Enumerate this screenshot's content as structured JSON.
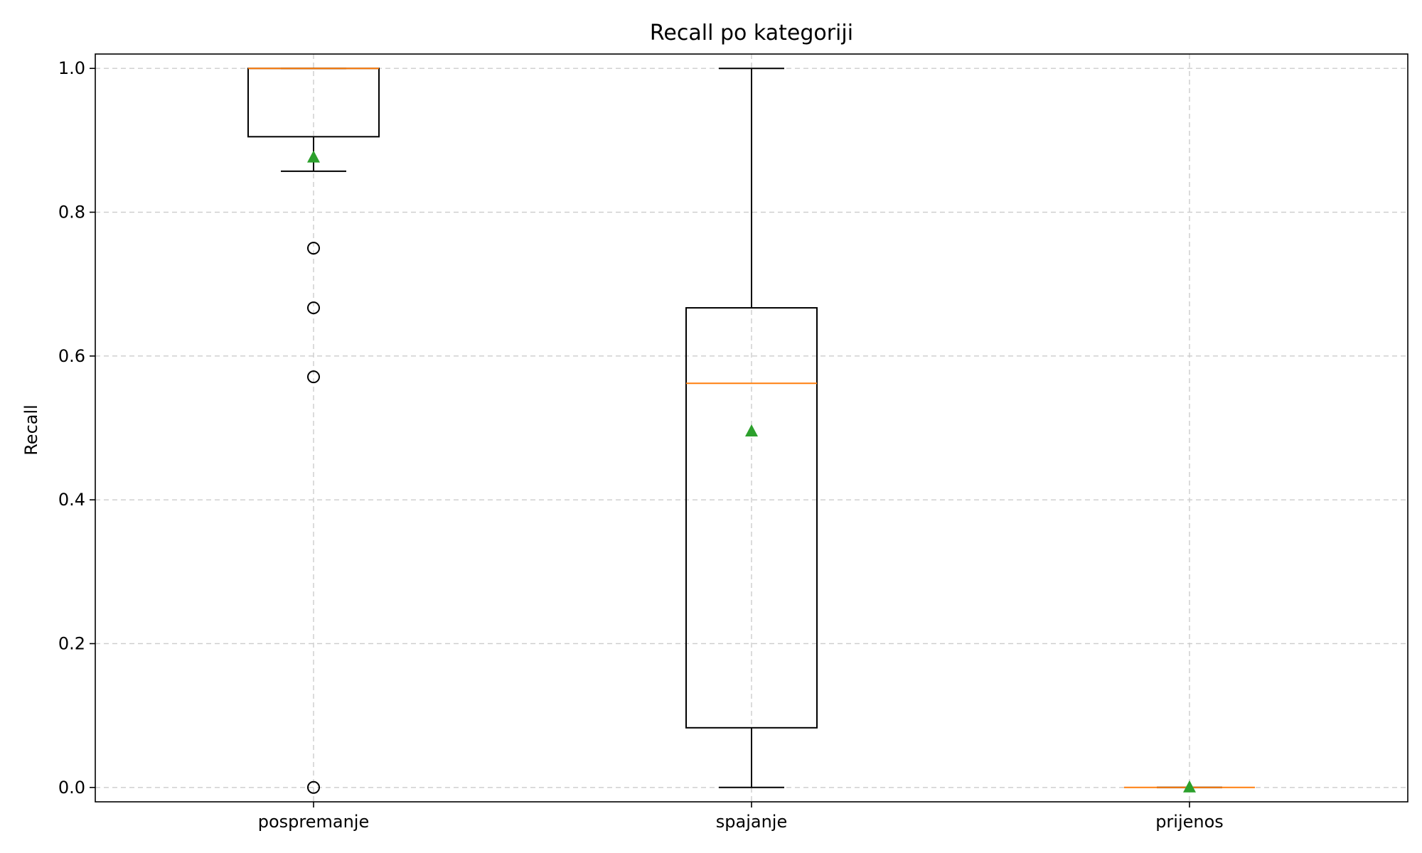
{
  "chart_data": {
    "type": "boxplot",
    "title": "Recall po kategoriji",
    "xlabel": "",
    "ylabel": "Recall",
    "ylim": [
      -0.02,
      1.02
    ],
    "yticks": [
      "0.0",
      "0.2",
      "0.4",
      "0.6",
      "0.8",
      "1.0"
    ],
    "grid": true,
    "colors": {
      "box": "#000000",
      "median": "#ff7f0e",
      "mean": "#2ca02c",
      "grid": "#cccccc",
      "flier": "#000000"
    },
    "categories": [
      "pospremanje",
      "spajanje",
      "prijenos"
    ],
    "series": [
      {
        "name": "pospremanje",
        "whisker_low": 0.857,
        "q1": 0.905,
        "median": 1.0,
        "q3": 1.0,
        "whisker_high": 1.0,
        "mean": 0.876,
        "outliers": [
          0.75,
          0.667,
          0.571,
          0.0
        ]
      },
      {
        "name": "spajanje",
        "whisker_low": 0.0,
        "q1": 0.083,
        "median": 0.562,
        "q3": 0.667,
        "whisker_high": 1.0,
        "mean": 0.495,
        "outliers": []
      },
      {
        "name": "prijenos",
        "whisker_low": 0.0,
        "q1": 0.0,
        "median": 0.0,
        "q3": 0.0,
        "whisker_high": 0.0,
        "mean": 0.0,
        "outliers": []
      }
    ]
  }
}
